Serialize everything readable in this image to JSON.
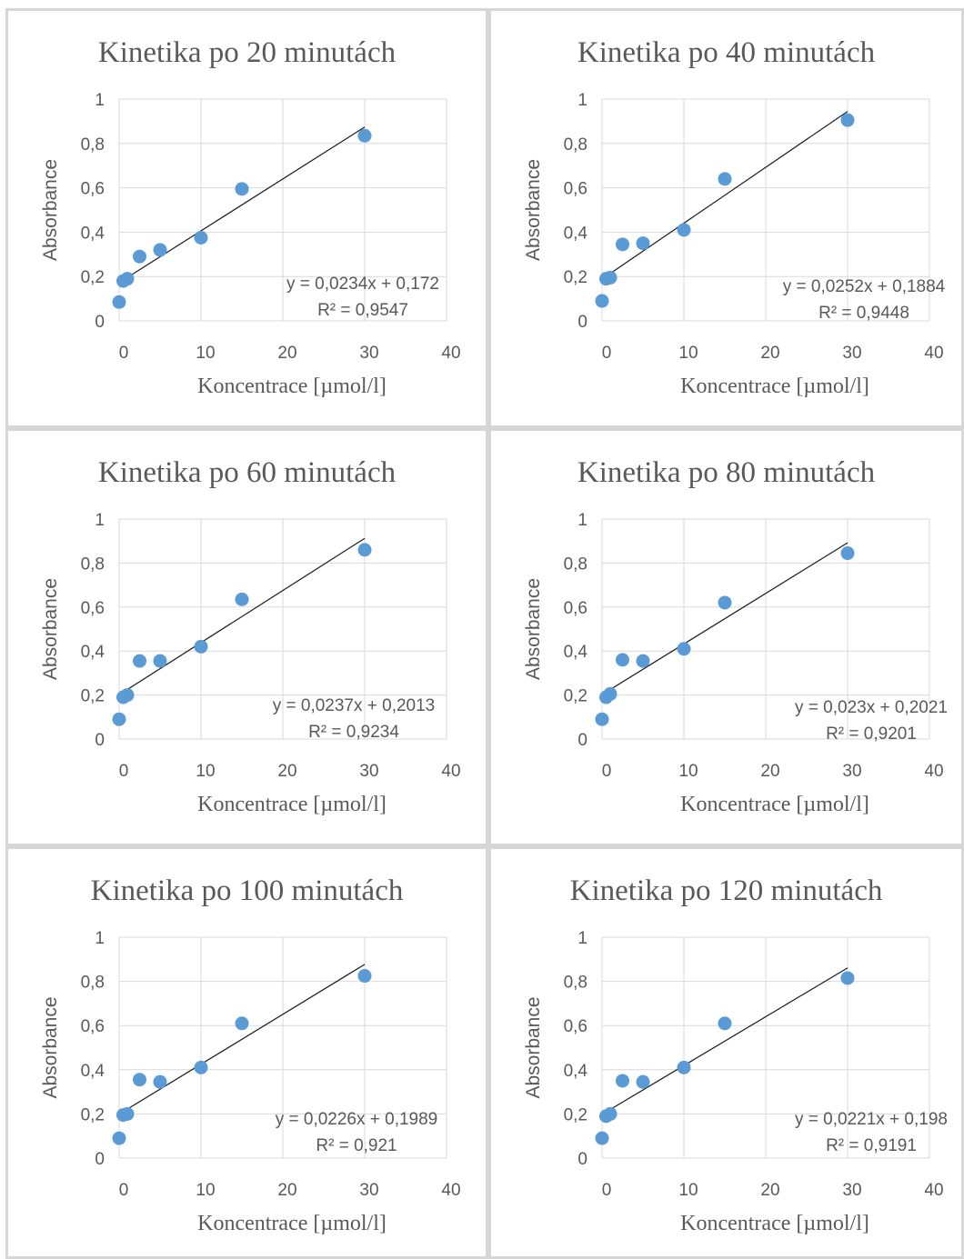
{
  "chart_data": [
    {
      "type": "scatter",
      "title": "Kinetika po 20 minutách",
      "xlabel": "Koncentrace [µmol/l]",
      "ylabel": "Absorbance",
      "xlim": [
        0,
        40
      ],
      "ylim": [
        0,
        1
      ],
      "xticks": [
        "0",
        "10",
        "20",
        "30",
        "40"
      ],
      "yticks": [
        "0",
        "0,2",
        "0,4",
        "0,6",
        "0,8",
        "1"
      ],
      "grid": true,
      "points": {
        "x": [
          0,
          0.5,
          1,
          2.5,
          5,
          10,
          15,
          30
        ],
        "y": [
          0.085,
          0.18,
          0.19,
          0.29,
          0.32,
          0.375,
          0.595,
          0.835
        ]
      },
      "trendline": {
        "slope": 0.0234,
        "intercept": 0.172,
        "x_range": [
          0,
          30
        ]
      },
      "equation": "y = 0,0234x + 0,172",
      "r_squared": "R² = 0,9547",
      "color": "#5b9bd5"
    },
    {
      "type": "scatter",
      "title": "Kinetika po 40 minutách",
      "xlabel": "Koncentrace [µmol/l]",
      "ylabel": "Absorbance",
      "xlim": [
        0,
        40
      ],
      "ylim": [
        0,
        1
      ],
      "xticks": [
        "0",
        "10",
        "20",
        "30",
        "40"
      ],
      "yticks": [
        "0",
        "0,2",
        "0,4",
        "0,6",
        "0,8",
        "1"
      ],
      "grid": true,
      "points": {
        "x": [
          0,
          0.5,
          1,
          2.5,
          5,
          10,
          15,
          30
        ],
        "y": [
          0.09,
          0.19,
          0.195,
          0.345,
          0.35,
          0.41,
          0.64,
          0.905
        ]
      },
      "trendline": {
        "slope": 0.0252,
        "intercept": 0.1884,
        "x_range": [
          0,
          30
        ]
      },
      "equation": "y = 0,0252x + 0,1884",
      "r_squared": "R² = 0,9448",
      "color": "#5b9bd5"
    },
    {
      "type": "scatter",
      "title": "Kinetika po 60 minutách",
      "xlabel": "Koncentrace [µmol/l]",
      "ylabel": "Absorbance",
      "xlim": [
        0,
        40
      ],
      "ylim": [
        0,
        1
      ],
      "xticks": [
        "0",
        "10",
        "20",
        "30",
        "40"
      ],
      "yticks": [
        "0",
        "0,2",
        "0,4",
        "0,6",
        "0,8",
        "1"
      ],
      "grid": true,
      "points": {
        "x": [
          0,
          0.5,
          1,
          2.5,
          5,
          10,
          15,
          30
        ],
        "y": [
          0.09,
          0.19,
          0.2,
          0.355,
          0.355,
          0.42,
          0.635,
          0.86
        ]
      },
      "trendline": {
        "slope": 0.0237,
        "intercept": 0.2013,
        "x_range": [
          0,
          30
        ]
      },
      "equation": "y = 0,0237x + 0,2013",
      "r_squared": "R² = 0,9234",
      "color": "#5b9bd5"
    },
    {
      "type": "scatter",
      "title": "Kinetika po 80 minutách",
      "xlabel": "Koncentrace [µmol/l]",
      "ylabel": "Absorbance",
      "xlim": [
        0,
        40
      ],
      "ylim": [
        0,
        1
      ],
      "xticks": [
        "0",
        "10",
        "20",
        "30",
        "40"
      ],
      "yticks": [
        "0",
        "0,2",
        "0,4",
        "0,6",
        "0,8",
        "1"
      ],
      "grid": true,
      "points": {
        "x": [
          0,
          0.5,
          1,
          2.5,
          5,
          10,
          15,
          30
        ],
        "y": [
          0.09,
          0.19,
          0.205,
          0.36,
          0.355,
          0.41,
          0.62,
          0.845
        ]
      },
      "trendline": {
        "slope": 0.023,
        "intercept": 0.2021,
        "x_range": [
          0,
          30
        ]
      },
      "equation": "y = 0,023x + 0,2021",
      "r_squared": "R² = 0,9201",
      "color": "#5b9bd5"
    },
    {
      "type": "scatter",
      "title": "Kinetika po 100 minutách",
      "xlabel": "Koncentrace [µmol/l]",
      "ylabel": "Absorbance",
      "xlim": [
        0,
        40
      ],
      "ylim": [
        0,
        1
      ],
      "xticks": [
        "0",
        "10",
        "20",
        "30",
        "40"
      ],
      "yticks": [
        "0",
        "0,2",
        "0,4",
        "0,6",
        "0,8",
        "1"
      ],
      "grid": true,
      "points": {
        "x": [
          0,
          0.5,
          1,
          2.5,
          5,
          10,
          15,
          30
        ],
        "y": [
          0.09,
          0.195,
          0.2,
          0.355,
          0.345,
          0.41,
          0.61,
          0.825
        ]
      },
      "trendline": {
        "slope": 0.0226,
        "intercept": 0.1989,
        "x_range": [
          0,
          30
        ]
      },
      "equation": "y = 0,0226x + 0,1989",
      "r_squared": "R² = 0,921",
      "color": "#5b9bd5"
    },
    {
      "type": "scatter",
      "title": "Kinetika po 120 minutách",
      "xlabel": "Koncentrace [µmol/l]",
      "ylabel": "Absorbance",
      "xlim": [
        0,
        40
      ],
      "ylim": [
        0,
        1
      ],
      "xticks": [
        "0",
        "10",
        "20",
        "30",
        "40"
      ],
      "yticks": [
        "0",
        "0,2",
        "0,4",
        "0,6",
        "0,8",
        "1"
      ],
      "grid": true,
      "points": {
        "x": [
          0,
          0.5,
          1,
          2.5,
          5,
          10,
          15,
          30
        ],
        "y": [
          0.09,
          0.19,
          0.2,
          0.35,
          0.345,
          0.41,
          0.61,
          0.815
        ]
      },
      "trendline": {
        "slope": 0.0221,
        "intercept": 0.198,
        "x_range": [
          0,
          30
        ]
      },
      "equation": "y = 0,0221x + 0,198",
      "r_squared": "R² = 0,9191",
      "color": "#5b9bd5"
    }
  ]
}
